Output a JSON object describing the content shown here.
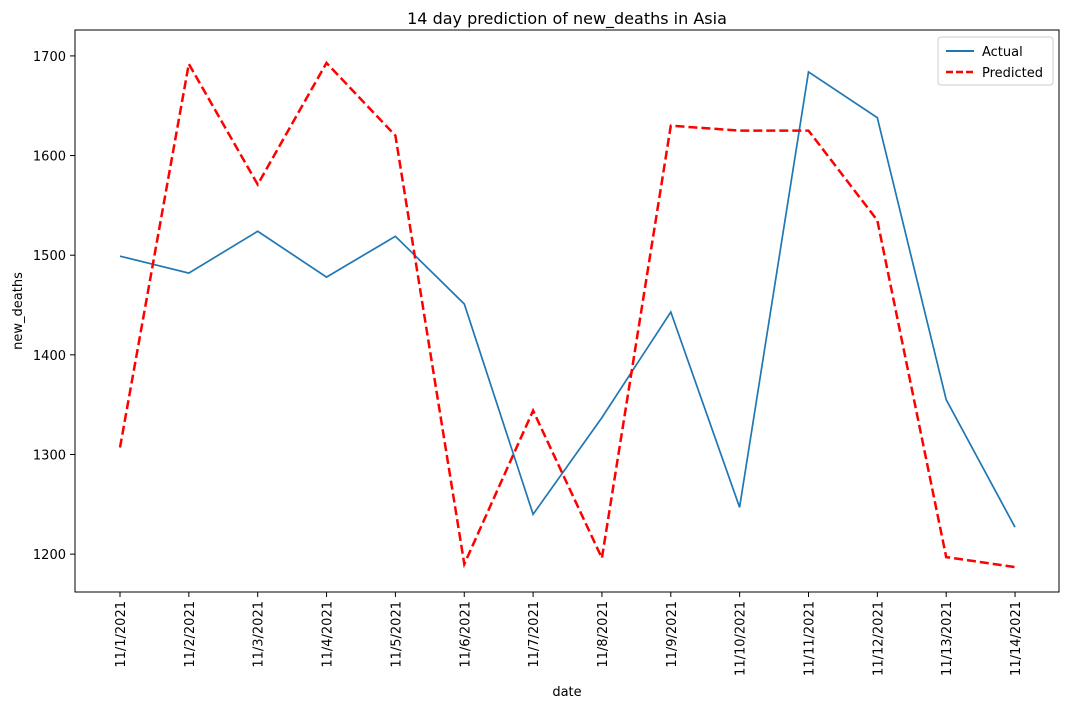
{
  "chart_data": {
    "type": "line",
    "title": "14 day prediction of new_deaths in Asia",
    "xlabel": "date",
    "ylabel": "new_deaths",
    "categories": [
      "11/1/2021",
      "11/2/2021",
      "11/3/2021",
      "11/4/2021",
      "11/5/2021",
      "11/6/2021",
      "11/7/2021",
      "11/8/2021",
      "11/9/2021",
      "11/10/2021",
      "11/11/2021",
      "11/12/2021",
      "11/13/2021",
      "11/14/2021"
    ],
    "ylim": [
      1162,
      1726
    ],
    "yticks": [
      1200,
      1300,
      1400,
      1500,
      1600,
      1700
    ],
    "grid": false,
    "legend_position": "top-right",
    "series": [
      {
        "name": "Actual",
        "color": "#1f77b4",
        "style": "solid",
        "values": [
          1499,
          1482,
          1524,
          1478,
          1519,
          1451,
          1240,
          1337,
          1443,
          1247,
          1684,
          1638,
          1355,
          1227
        ]
      },
      {
        "name": "Predicted",
        "color": "#ff0000",
        "style": "dashed",
        "values": [
          1307,
          1692,
          1571,
          1693,
          1620,
          1190,
          1344,
          1196,
          1630,
          1625,
          1625,
          1535,
          1197,
          1187
        ]
      }
    ]
  }
}
